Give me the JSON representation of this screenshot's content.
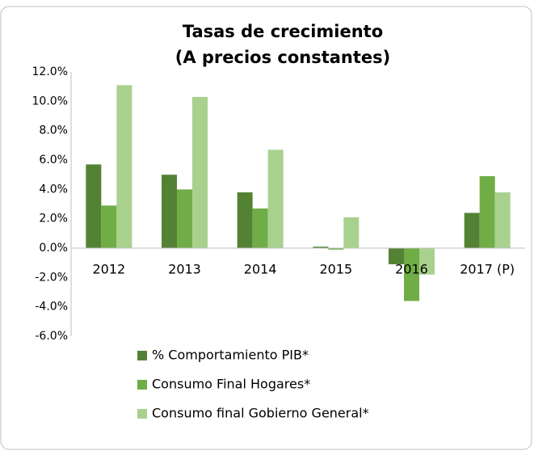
{
  "chart_data": {
    "type": "bar",
    "title": [
      "Tasas de crecimiento",
      "(A precios constantes)"
    ],
    "categories": [
      "2012",
      "2013",
      "2014",
      "2015",
      "2016",
      "2017 (P)"
    ],
    "series": [
      {
        "name": "% Comportamiento PIB*",
        "color": "#548235",
        "values": [
          5.7,
          5.0,
          3.8,
          0.1,
          -1.1,
          2.4
        ]
      },
      {
        "name": "Consumo Final Hogares*",
        "color": "#70ad47",
        "values": [
          2.9,
          4.0,
          2.7,
          -0.1,
          -3.6,
          4.9
        ]
      },
      {
        "name": "Consumo final Gobierno General*",
        "color": "#a9d18e",
        "values": [
          11.1,
          10.3,
          6.7,
          2.1,
          -1.8,
          3.8
        ]
      }
    ],
    "ylim": [
      -6,
      12
    ],
    "yticks": [
      {
        "value": -6,
        "label": "-6.0%"
      },
      {
        "value": -4,
        "label": "-4.0%"
      },
      {
        "value": -2,
        "label": "-2.0%"
      },
      {
        "value": 0,
        "label": "0.0%"
      },
      {
        "value": 2,
        "label": "2.0%"
      },
      {
        "value": 4,
        "label": "4.0%"
      },
      {
        "value": 6,
        "label": "6.0%"
      },
      {
        "value": 8,
        "label": "8.0%"
      },
      {
        "value": 10,
        "label": "10.0%"
      },
      {
        "value": 12,
        "label": "12.0%"
      }
    ],
    "grid": false,
    "legend": "bottom"
  }
}
